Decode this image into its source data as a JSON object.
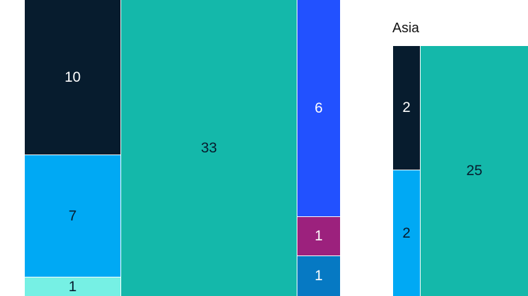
{
  "chart_data": {
    "type": "mekko",
    "groups": [
      {
        "title": "",
        "columns": [
          {
            "segments": [
              {
                "value": 10,
                "color": "#071c2e",
                "text_color": "#ffffff"
              },
              {
                "value": 7,
                "color": "#00a9f4",
                "text_color": "#071c2e"
              },
              {
                "value": 1,
                "color": "#76f0e4",
                "text_color": "#071c2e"
              }
            ]
          },
          {
            "segments": [
              {
                "value": 33,
                "color": "#14b8aa",
                "text_color": "#071c2e"
              }
            ]
          },
          {
            "segments": [
              {
                "value": 6,
                "color": "#2251ff",
                "text_color": "#ffffff"
              },
              {
                "value": 1,
                "color": "#9c217d",
                "text_color": "#ffffff"
              },
              {
                "value": 1,
                "color": "#0679c3",
                "text_color": "#ffffff"
              }
            ]
          }
        ]
      },
      {
        "title": "Asia",
        "columns": [
          {
            "segments": [
              {
                "value": 2,
                "color": "#071c2e",
                "text_color": "#ffffff"
              },
              {
                "value": 2,
                "color": "#00a9f4",
                "text_color": "#071c2e"
              }
            ]
          },
          {
            "segments": [
              {
                "value": 25,
                "color": "#14b8aa",
                "text_color": "#071c2e"
              }
            ]
          }
        ]
      }
    ]
  }
}
